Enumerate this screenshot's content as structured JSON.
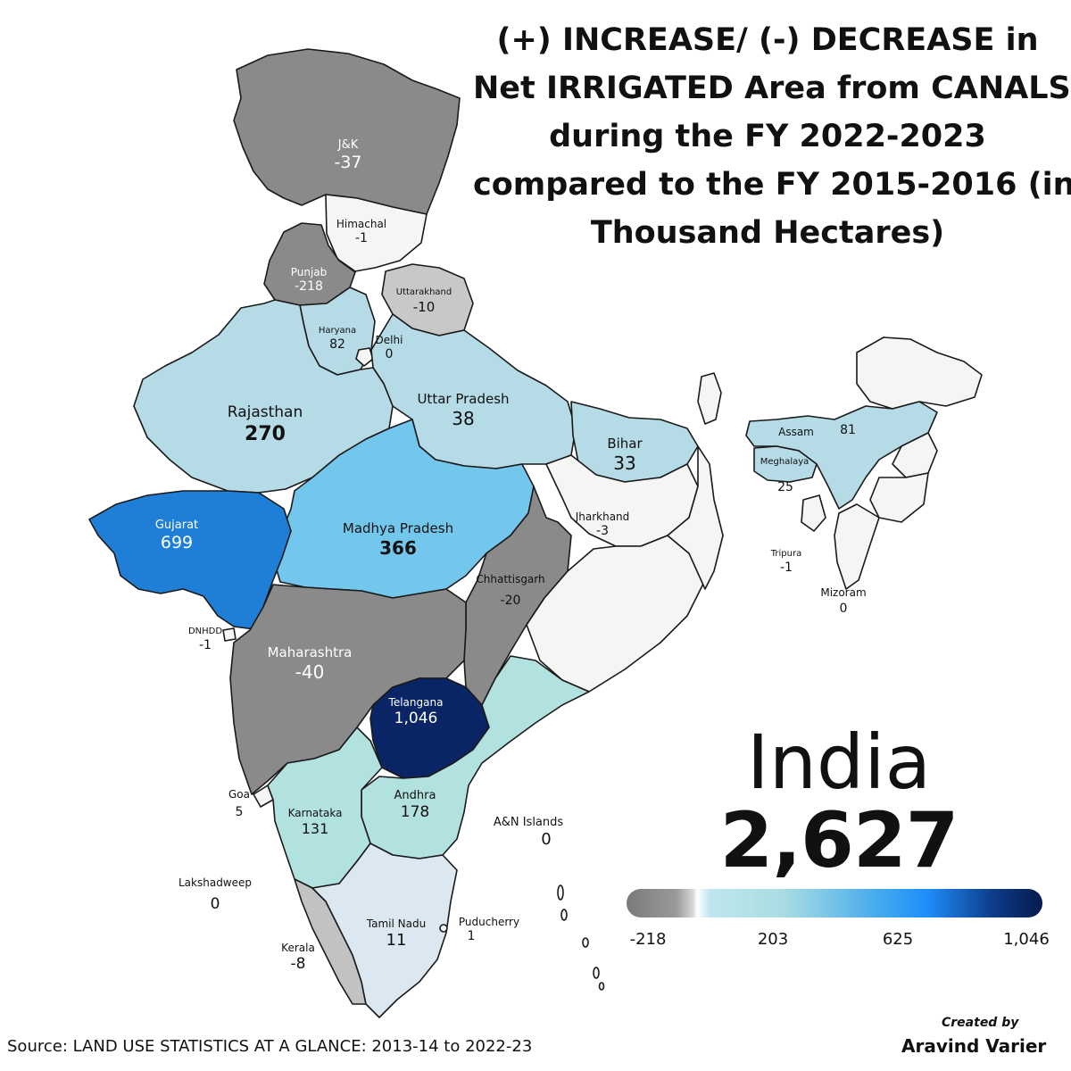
{
  "title_lines": [
    "(+) INCREASE/ (-) DECREASE in",
    "Net IRRIGATED Area from CANALS",
    "during the FY 2022-2023",
    "compared to the FY 2015-2016 (in",
    "Thousand Hectares)"
  ],
  "colors": {
    "decrease": "#8a8a8a",
    "neutral": "#f5f5f5",
    "low": "#b4dbe6",
    "mid": "#74c7ec",
    "high": "#1f7ed6",
    "max": "#0a2566",
    "border": "#1a1a1a"
  },
  "regions": {
    "jk": {
      "name": "J&K",
      "value": "-37"
    },
    "himachal": {
      "name": "Himachal",
      "value": "-1"
    },
    "punjab": {
      "name": "Punjab",
      "value": "-218"
    },
    "uttarakhand": {
      "name": "Uttarakhand",
      "value": "-10"
    },
    "haryana": {
      "name": "Haryana",
      "value": "82"
    },
    "delhi": {
      "name": "Delhi",
      "value": "0"
    },
    "rajasthan": {
      "name": "Rajasthan",
      "value": "270"
    },
    "uttar_pradesh": {
      "name": "Uttar Pradesh",
      "value": "38"
    },
    "bihar": {
      "name": "Bihar",
      "value": "33"
    },
    "assam": {
      "name": "Assam",
      "value": "81"
    },
    "meghalaya": {
      "name": "Meghalaya",
      "value": "25"
    },
    "gujarat": {
      "name": "Gujarat",
      "value": "699"
    },
    "madhya_pradesh": {
      "name": "Madhya Pradesh",
      "value": "366"
    },
    "jharkhand": {
      "name": "Jharkhand",
      "value": "-3"
    },
    "tripura": {
      "name": "Tripura",
      "value": "-1"
    },
    "chhattisgarh": {
      "name": "Chhattisgarh",
      "value": "-20"
    },
    "mizoram": {
      "name": "Mizoram",
      "value": "0"
    },
    "dnhdd": {
      "name": "DNHDD",
      "value": "-1"
    },
    "maharashtra": {
      "name": "Maharashtra",
      "value": "-40"
    },
    "telangana": {
      "name": "Telangana",
      "value": "1,046"
    },
    "goa": {
      "name": "Goa",
      "value": "5"
    },
    "karnataka": {
      "name": "Karnataka",
      "value": "131"
    },
    "andhra": {
      "name": "Andhra",
      "value": "178"
    },
    "an_islands": {
      "name": "A&N Islands",
      "value": "0"
    },
    "lakshadweep": {
      "name": "Lakshadweep",
      "value": "0"
    },
    "tamil_nadu": {
      "name": "Tamil Nadu",
      "value": "11"
    },
    "puducherry": {
      "name": "Puducherry",
      "value": "1"
    },
    "kerala": {
      "name": "Kerala",
      "value": "-8"
    }
  },
  "total": {
    "name": "India",
    "value": "2,627"
  },
  "legend": {
    "min": "-218",
    "t1": "203",
    "t2": "625",
    "max": "1,046"
  },
  "source": "Source: LAND USE STATISTICS AT A GLANCE: 2013-14 to 2022-23",
  "credit": {
    "line1": "Created by",
    "line2": "Aravind Varier"
  }
}
